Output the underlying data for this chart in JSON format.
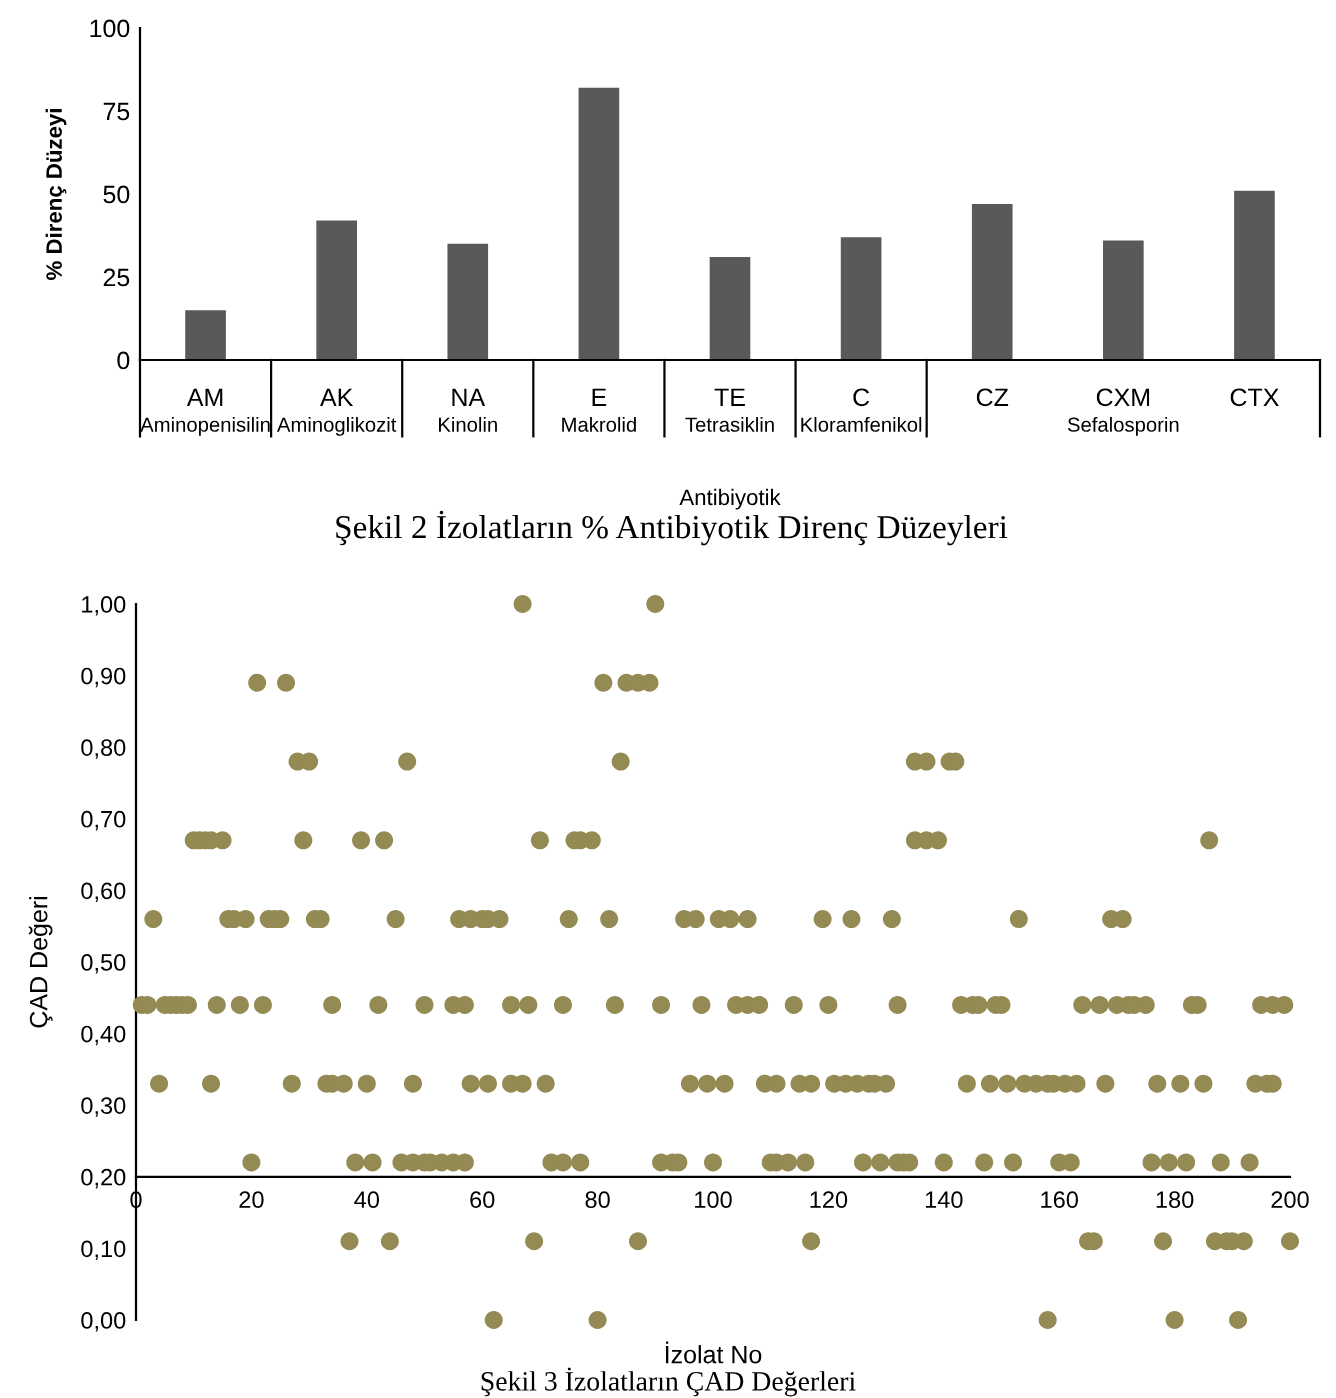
{
  "chart_data": [
    {
      "type": "bar",
      "categories": [
        "AM",
        "AK",
        "NA",
        "E",
        "TE",
        "C",
        "CZ",
        "CXM",
        "CTX"
      ],
      "values": [
        15,
        42,
        35,
        82,
        31,
        37,
        47,
        36,
        51
      ],
      "color": "#595959",
      "ylim": [
        0,
        100
      ],
      "yticks": [
        0,
        25,
        50,
        75,
        100
      ],
      "grid": false,
      "legend": false,
      "xlabel": "Antibiyotik",
      "ylabel": "% Direnç Düzeyi",
      "annotations": [
        "Aminopenisilin",
        "Aminoglikozit",
        "Kinolin",
        "Makrolid",
        "Tetrasiklin",
        "Kloramfenikol",
        "Sefalosporin",
        "Şekil 2 İzolatların % Antibiyotik Direnç Düzeyleri"
      ]
    },
    {
      "type": "scatter",
      "color": "#948a54",
      "marker": "circle",
      "grid": false,
      "legend": false,
      "x": [
        67,
        90,
        21,
        26,
        81,
        85,
        87,
        89,
        28,
        30,
        47,
        84,
        135,
        137,
        141,
        142,
        10,
        11,
        12,
        13,
        15,
        29,
        39,
        43,
        70,
        76,
        77,
        79,
        135,
        137,
        139,
        186,
        3,
        16,
        17,
        19,
        23,
        24,
        25,
        31,
        32,
        45,
        56,
        58,
        60,
        61,
        63,
        75,
        82,
        95,
        97,
        101,
        103,
        106,
        119,
        124,
        131,
        153,
        169,
        171,
        1,
        2,
        5,
        6,
        7,
        8,
        9,
        14,
        18,
        22,
        34,
        42,
        50,
        55,
        57,
        65,
        68,
        74,
        83,
        91,
        98,
        104,
        106,
        108,
        114,
        120,
        132,
        143,
        145,
        146,
        149,
        150,
        164,
        167,
        170,
        172,
        173,
        175,
        183,
        184,
        195,
        197,
        199,
        4,
        13,
        27,
        33,
        34,
        36,
        40,
        48,
        58,
        61,
        65,
        67,
        71,
        96,
        99,
        102,
        109,
        111,
        115,
        117,
        121,
        123,
        125,
        127,
        128,
        130,
        144,
        148,
        151,
        154,
        156,
        158,
        159,
        161,
        163,
        168,
        177,
        181,
        185,
        194,
        196,
        197,
        20,
        38,
        41,
        46,
        48,
        50,
        51,
        53,
        55,
        57,
        72,
        74,
        77,
        91,
        93,
        94,
        100,
        110,
        111,
        113,
        116,
        126,
        129,
        132,
        133,
        134,
        140,
        147,
        152,
        160,
        162,
        176,
        179,
        182,
        188,
        193,
        37,
        44,
        69,
        87,
        117,
        165,
        166,
        178,
        187,
        189,
        190,
        192,
        200,
        62,
        80,
        158,
        180,
        191
      ],
      "values": [
        1.0,
        1.0,
        0.89,
        0.89,
        0.89,
        0.89,
        0.89,
        0.89,
        0.78,
        0.78,
        0.78,
        0.78,
        0.78,
        0.78,
        0.78,
        0.78,
        0.67,
        0.67,
        0.67,
        0.67,
        0.67,
        0.67,
        0.67,
        0.67,
        0.67,
        0.67,
        0.67,
        0.67,
        0.67,
        0.67,
        0.67,
        0.67,
        0.56,
        0.56,
        0.56,
        0.56,
        0.56,
        0.56,
        0.56,
        0.56,
        0.56,
        0.56,
        0.56,
        0.56,
        0.56,
        0.56,
        0.56,
        0.56,
        0.56,
        0.56,
        0.56,
        0.56,
        0.56,
        0.56,
        0.56,
        0.56,
        0.56,
        0.56,
        0.56,
        0.56,
        0.44,
        0.44,
        0.44,
        0.44,
        0.44,
        0.44,
        0.44,
        0.44,
        0.44,
        0.44,
        0.44,
        0.44,
        0.44,
        0.44,
        0.44,
        0.44,
        0.44,
        0.44,
        0.44,
        0.44,
        0.44,
        0.44,
        0.44,
        0.44,
        0.44,
        0.44,
        0.44,
        0.44,
        0.44,
        0.44,
        0.44,
        0.44,
        0.44,
        0.44,
        0.44,
        0.44,
        0.44,
        0.44,
        0.44,
        0.44,
        0.44,
        0.44,
        0.44,
        0.33,
        0.33,
        0.33,
        0.33,
        0.33,
        0.33,
        0.33,
        0.33,
        0.33,
        0.33,
        0.33,
        0.33,
        0.33,
        0.33,
        0.33,
        0.33,
        0.33,
        0.33,
        0.33,
        0.33,
        0.33,
        0.33,
        0.33,
        0.33,
        0.33,
        0.33,
        0.33,
        0.33,
        0.33,
        0.33,
        0.33,
        0.33,
        0.33,
        0.33,
        0.33,
        0.33,
        0.33,
        0.33,
        0.33,
        0.33,
        0.33,
        0.33,
        0.22,
        0.22,
        0.22,
        0.22,
        0.22,
        0.22,
        0.22,
        0.22,
        0.22,
        0.22,
        0.22,
        0.22,
        0.22,
        0.22,
        0.22,
        0.22,
        0.22,
        0.22,
        0.22,
        0.22,
        0.22,
        0.22,
        0.22,
        0.22,
        0.22,
        0.22,
        0.22,
        0.22,
        0.22,
        0.22,
        0.22,
        0.22,
        0.22,
        0.22,
        0.22,
        0.22,
        0.11,
        0.11,
        0.11,
        0.11,
        0.11,
        0.11,
        0.11,
        0.11,
        0.11,
        0.11,
        0.11,
        0.11,
        0.11,
        0.0,
        0.0,
        0.0,
        0.0,
        0.0
      ],
      "xlim": [
        0,
        200
      ],
      "xticks": [
        0,
        20,
        40,
        60,
        80,
        100,
        120,
        140,
        160,
        180,
        200
      ],
      "ylim": [
        0,
        1
      ],
      "yticks": [
        {
          "value": 0,
          "label": "0,00"
        },
        {
          "value": 0.1,
          "label": "0,10"
        },
        {
          "value": 0.2,
          "label": "0,20"
        },
        {
          "value": 0.3,
          "label": "0,30"
        },
        {
          "value": 0.4,
          "label": "0,40"
        },
        {
          "value": 0.5,
          "label": "0,50"
        },
        {
          "value": 0.6,
          "label": "0,60"
        },
        {
          "value": 0.7,
          "label": "0,70"
        },
        {
          "value": 0.8,
          "label": "0,80"
        },
        {
          "value": 0.9,
          "label": "0,90"
        },
        {
          "value": 1,
          "label": "1,00"
        }
      ],
      "xlabel": "İzolat No",
      "ylabel": "ÇAD Değeri",
      "annotations": [
        "Şekil 3 İzolatların ÇAD Değerleri"
      ]
    }
  ]
}
